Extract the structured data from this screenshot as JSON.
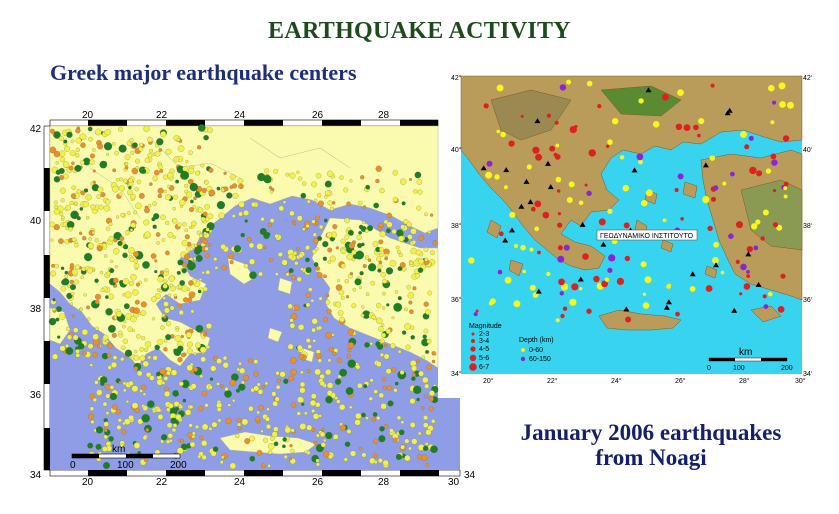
{
  "page": {
    "title": "EARTHQUAKE ACTIVITY",
    "left_subtitle": "Greek major earthquake centers",
    "right_caption_line1": "January 2006 earthquakes",
    "right_caption_line2": "from Noagi"
  },
  "left_map": {
    "lon_ticks": [
      "20",
      "22",
      "24",
      "26",
      "28"
    ],
    "lon_ticks_bottom": [
      "20",
      "22",
      "24",
      "26",
      "28",
      "30"
    ],
    "lat_ticks": [
      "42",
      "40",
      "38",
      "36",
      "34"
    ],
    "lat_tick_right": "34",
    "scale_label": "km",
    "scale_ticks": [
      "0",
      "100",
      "200"
    ],
    "colors": {
      "sea": "#8f9de6",
      "land": "#fbfbb0",
      "quake_yellow": "#f1f147",
      "quake_orange": "#e8902a",
      "quake_green": "#1d7f22"
    }
  },
  "right_map": {
    "lon_ticks": [
      "20°",
      "22°",
      "24°",
      "26°",
      "28°",
      "30°"
    ],
    "lat_ticks": [
      "42°",
      "40°",
      "38°",
      "36°",
      "34°"
    ],
    "institute_label": "ΓΕΩΔΥΝΑΜΙΚΟ ΙΝΣΤΙΤΟΥΤΟ",
    "legend_magnitude_title": "Magnitude",
    "legend_magnitude": [
      "2-3",
      "3-4",
      "4-5",
      "5-6",
      "6-7"
    ],
    "legend_depth_title": "Depth (km)",
    "legend_depth": [
      "0-60",
      "60-150"
    ],
    "scale_label": "km",
    "scale_ticks": [
      "0",
      "100",
      "200"
    ],
    "colors": {
      "sea": "#38d3ee",
      "land": "#b99c5a",
      "quake_red": "#dd2020",
      "quake_yellow": "#f7f71c",
      "quake_purple": "#8a24d9",
      "station": "#000000"
    }
  }
}
